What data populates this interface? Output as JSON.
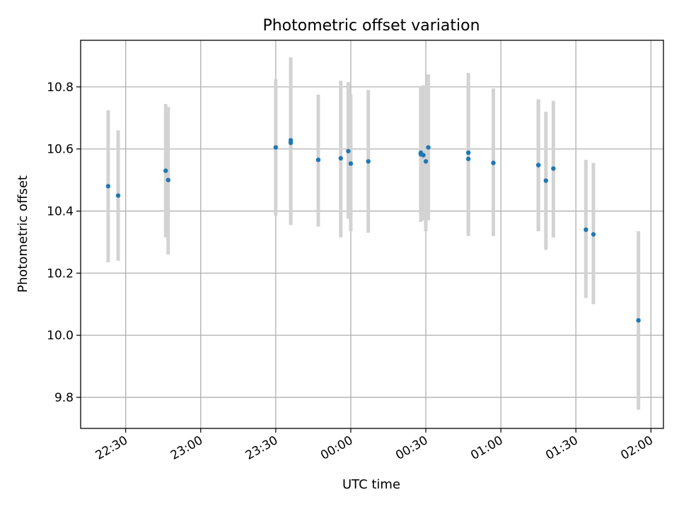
{
  "chart_data": {
    "type": "scatter",
    "title": "Photometric offset variation",
    "xlabel": "UTC time",
    "ylabel": "Photometric offset",
    "x_unit": "UTC HH:MM (times after midnight belong to the following day)",
    "xlim": [
      "22:12",
      "02:05"
    ],
    "ylim": [
      9.7,
      10.95
    ],
    "x_ticks": [
      "22:30",
      "23:00",
      "23:30",
      "00:00",
      "00:30",
      "01:00",
      "01:30",
      "02:00"
    ],
    "y_ticks": [
      9.8,
      10.0,
      10.2,
      10.4,
      10.6,
      10.8
    ],
    "grid": true,
    "point_color": "#1f77b4",
    "errorbar_color": "#d3d3d3",
    "points": [
      {
        "x": "22:23",
        "y": 10.48,
        "ymin": 10.235,
        "ymax": 10.725
      },
      {
        "x": "22:27",
        "y": 10.45,
        "ymin": 10.24,
        "ymax": 10.66
      },
      {
        "x": "22:46",
        "y": 10.53,
        "ymin": 10.315,
        "ymax": 10.745
      },
      {
        "x": "22:47",
        "y": 10.5,
        "ymin": 10.26,
        "ymax": 10.735
      },
      {
        "x": "23:30",
        "y": 10.605,
        "ymin": 10.385,
        "ymax": 10.825
      },
      {
        "x": "23:36",
        "y": 10.62,
        "ymin": 10.36,
        "ymax": 10.875
      },
      {
        "x": "23:36",
        "y": 10.628,
        "ymin": 10.355,
        "ymax": 10.895
      },
      {
        "x": "23:47",
        "y": 10.565,
        "ymin": 10.35,
        "ymax": 10.775
      },
      {
        "x": "23:56",
        "y": 10.57,
        "ymin": 10.315,
        "ymax": 10.82
      },
      {
        "x": "23:59",
        "y": 10.593,
        "ymin": 10.375,
        "ymax": 10.815
      },
      {
        "x": "00:00",
        "y": 10.553,
        "ymin": 10.335,
        "ymax": 10.775
      },
      {
        "x": "00:07",
        "y": 10.56,
        "ymin": 10.33,
        "ymax": 10.79
      },
      {
        "x": "00:28",
        "y": 10.583,
        "ymin": 10.37,
        "ymax": 10.795
      },
      {
        "x": "00:28",
        "y": 10.588,
        "ymin": 10.365,
        "ymax": 10.8
      },
      {
        "x": "00:29",
        "y": 10.58,
        "ymin": 10.37,
        "ymax": 10.805
      },
      {
        "x": "00:30",
        "y": 10.56,
        "ymin": 10.335,
        "ymax": 10.805
      },
      {
        "x": "00:31",
        "y": 10.605,
        "ymin": 10.37,
        "ymax": 10.84
      },
      {
        "x": "00:47",
        "y": 10.568,
        "ymin": 10.32,
        "ymax": 10.815
      },
      {
        "x": "00:47",
        "y": 10.588,
        "ymin": 10.33,
        "ymax": 10.845
      },
      {
        "x": "00:57",
        "y": 10.555,
        "ymin": 10.32,
        "ymax": 10.795
      },
      {
        "x": "01:15",
        "y": 10.548,
        "ymin": 10.335,
        "ymax": 10.76
      },
      {
        "x": "01:15",
        "y": 10.548,
        "ymin": 10.335,
        "ymax": 10.76
      },
      {
        "x": "01:18",
        "y": 10.498,
        "ymin": 10.275,
        "ymax": 10.72
      },
      {
        "x": "01:21",
        "y": 10.537,
        "ymin": 10.315,
        "ymax": 10.755
      },
      {
        "x": "01:34",
        "y": 10.34,
        "ymin": 10.12,
        "ymax": 10.565
      },
      {
        "x": "01:37",
        "y": 10.325,
        "ymin": 10.1,
        "ymax": 10.555
      },
      {
        "x": "01:55",
        "y": 10.048,
        "ymin": 9.76,
        "ymax": 10.335
      }
    ]
  }
}
